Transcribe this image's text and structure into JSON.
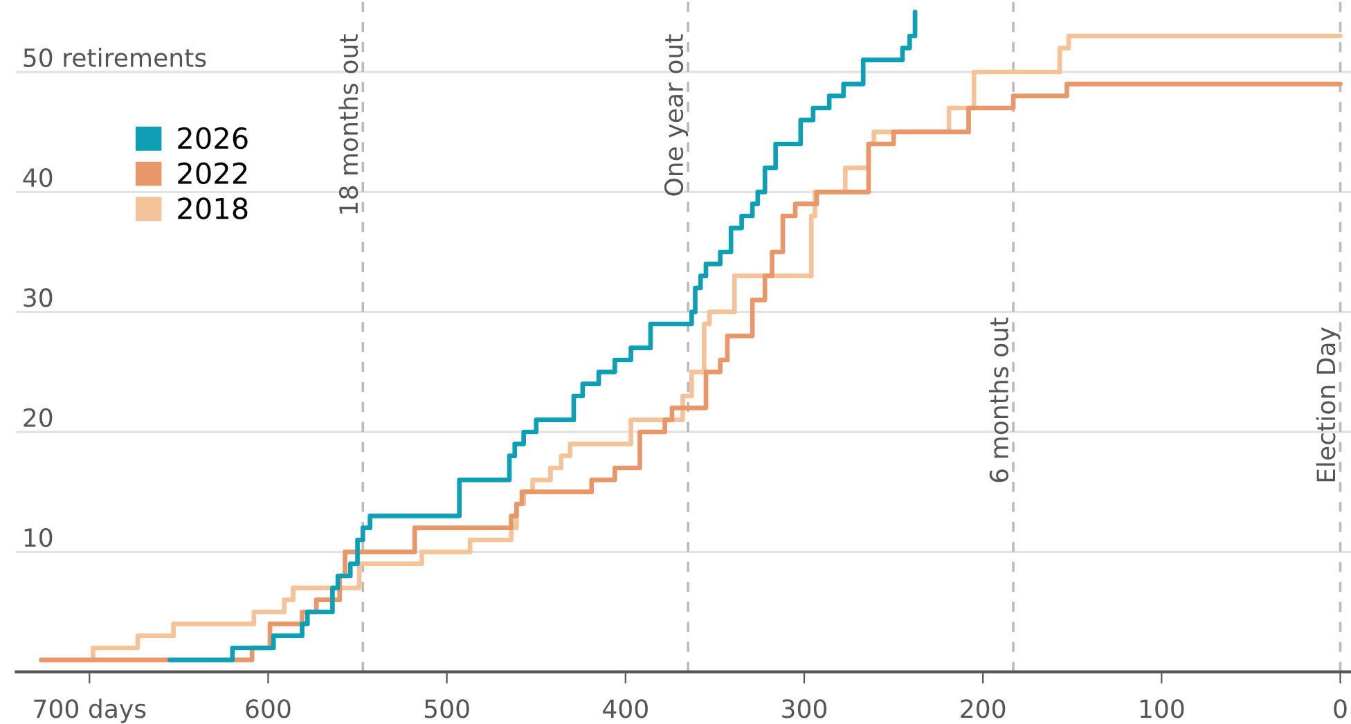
{
  "chart_data": {
    "type": "step",
    "xlim": [
      741,
      -6
    ],
    "ylim": [
      0,
      56
    ],
    "xticks": [
      {
        "value": 700,
        "label": "700 days"
      },
      600,
      500,
      400,
      300,
      200,
      100,
      0
    ],
    "yticks": [
      10,
      20,
      30,
      40,
      {
        "value": 50,
        "label": "50 retirements"
      }
    ],
    "grid": "y",
    "legend": "top left",
    "line_style": "solid",
    "marker": "none",
    "series": [
      {
        "name": "2026",
        "color": "#0e9fb5",
        "x": [
          655,
          620,
          597,
          581,
          578,
          564,
          561,
          554,
          550,
          547,
          543,
          493,
          465,
          462,
          457,
          450,
          429,
          424,
          415,
          406,
          397,
          386,
          363,
          361,
          358,
          355,
          347,
          341,
          335,
          329,
          326,
          322,
          316,
          302,
          295,
          286,
          278,
          267,
          245,
          241,
          238
        ],
        "values": [
          1,
          2,
          3,
          4,
          5,
          7,
          8,
          9,
          11,
          12,
          13,
          16,
          18,
          19,
          20,
          21,
          23,
          24,
          25,
          26,
          27,
          29,
          30,
          32,
          33,
          34,
          35,
          37,
          38,
          39,
          40,
          42,
          44,
          46,
          47,
          48,
          49,
          51,
          52,
          53,
          55
        ]
      },
      {
        "name": "2022",
        "color": "#e8976a",
        "x": [
          727,
          609,
          599,
          581,
          573,
          560,
          557,
          518,
          464,
          461,
          458,
          419,
          406,
          392,
          378,
          374,
          355,
          347,
          343,
          329,
          322,
          318,
          312,
          305,
          293,
          264,
          250,
          208,
          183,
          153,
          0
        ],
        "values": [
          1,
          2,
          4,
          5,
          6,
          8,
          10,
          12,
          13,
          14,
          15,
          16,
          17,
          20,
          21,
          22,
          25,
          26,
          28,
          31,
          33,
          35,
          38,
          39,
          40,
          44,
          45,
          47,
          48,
          49,
          49
        ]
      },
      {
        "name": "2018",
        "color": "#f4c39a",
        "x": [
          727,
          698,
          673,
          653,
          608,
          591,
          586,
          549,
          514,
          487,
          464,
          461,
          457,
          452,
          442,
          436,
          431,
          397,
          368,
          363,
          356,
          353,
          339,
          296,
          294,
          277,
          264,
          261,
          219,
          205,
          157,
          152,
          0
        ],
        "values": [
          1,
          2,
          3,
          4,
          5,
          6,
          7,
          9,
          10,
          11,
          12,
          14,
          15,
          16,
          17,
          18,
          19,
          21,
          23,
          25,
          29,
          30,
          33,
          38,
          40,
          42,
          44,
          45,
          47,
          50,
          52,
          53,
          53
        ]
      }
    ],
    "ref_lines": [
      {
        "axis": "x",
        "value": 547,
        "label": "18 months out",
        "color": "#bbbbbb",
        "line_style": "dashed"
      },
      {
        "axis": "x",
        "value": 365,
        "label": "One year out",
        "color": "#bbbbbb",
        "line_style": "dashed"
      },
      {
        "axis": "x",
        "value": 183,
        "label": "6 months out",
        "color": "#bbbbbb",
        "line_style": "dashed"
      },
      {
        "axis": "x",
        "value": 0,
        "label": "Election Day",
        "color": "#bbbbbb",
        "line_style": "dashed"
      }
    ]
  }
}
